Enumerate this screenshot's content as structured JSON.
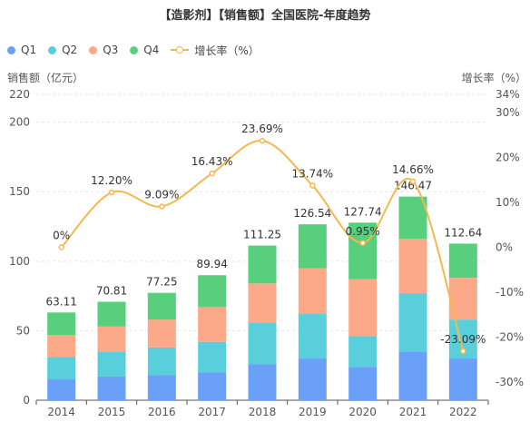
{
  "chart_data": {
    "type": "bar",
    "title": "【造影剂】【销售额】全国医院-年度趋势",
    "ylabel": "销售额（亿元）",
    "y2label": "增长率（%）",
    "categories": [
      "2014",
      "2015",
      "2016",
      "2017",
      "2018",
      "2019",
      "2020",
      "2021",
      "2022"
    ],
    "ylim": [
      0,
      220
    ],
    "yticks": [
      0,
      50,
      100,
      150,
      200,
      220
    ],
    "y2lim": [
      -34,
      34
    ],
    "y2ticks": [
      "-30%",
      "-20%",
      "-10%",
      "0%",
      "10%",
      "20%",
      "30%",
      "34%"
    ],
    "y2tick_values": [
      -30,
      -20,
      -10,
      0,
      10,
      20,
      30,
      34
    ],
    "series": [
      {
        "name": "Q1",
        "color": "#6aa0f7",
        "values": [
          15,
          17,
          18,
          20,
          26,
          30,
          24,
          35,
          30
        ]
      },
      {
        "name": "Q2",
        "color": "#5acfdc",
        "values": [
          16,
          18,
          20,
          22,
          30,
          32,
          22,
          42,
          28
        ]
      },
      {
        "name": "Q3",
        "color": "#fca98a",
        "values": [
          16,
          18,
          20,
          25,
          28,
          33,
          41,
          39,
          30
        ]
      },
      {
        "name": "Q4",
        "color": "#57cf7c",
        "values": [
          16.11,
          17.81,
          19.25,
          22.94,
          27.25,
          31.54,
          40.74,
          30.47,
          24.64
        ]
      }
    ],
    "totals": [
      63.11,
      70.81,
      77.25,
      89.94,
      111.25,
      126.54,
      127.74,
      146.47,
      112.64
    ],
    "total_labels": [
      "63.11",
      "70.81",
      "77.25",
      "89.94",
      "111.25",
      "126.54",
      "127.74",
      "146.47",
      "112.64"
    ],
    "growth": {
      "name": "增长率（%）",
      "color": "#f5b84c",
      "values": [
        0,
        12.2,
        9.09,
        16.43,
        23.69,
        13.74,
        0.95,
        14.66,
        -23.09
      ],
      "labels": [
        "0%",
        "12.20%",
        "9.09%",
        "16.43%",
        "23.69%",
        "13.74%",
        "0.95%",
        "14.66%",
        "-23.09%"
      ]
    },
    "grid": true,
    "legend_position": "top-left"
  }
}
